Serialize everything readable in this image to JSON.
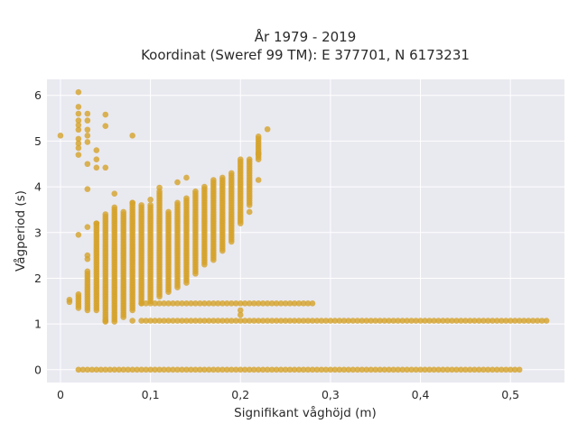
{
  "chart_data": {
    "type": "scatter",
    "title_line1": "År 1979 - 2019",
    "title_line2": "Koordinat (Sweref 99 TM): E 377701, N 6173231",
    "xlabel": "Signifikant våghöjd (m)",
    "ylabel": "Vågperiod (s)",
    "xlim": [
      -0.015,
      0.56
    ],
    "ylim": [
      -0.28,
      6.35
    ],
    "x_ticks": [
      0,
      0.1,
      0.2,
      0.3,
      0.4,
      0.5
    ],
    "x_tick_labels": [
      "0",
      "0,1",
      "0,2",
      "0,3",
      "0,4",
      "0,5"
    ],
    "y_ticks": [
      0,
      1,
      2,
      3,
      4,
      5,
      6
    ],
    "y_tick_labels": [
      "0",
      "1",
      "2",
      "3",
      "4",
      "5",
      "6"
    ],
    "grid": true,
    "legend": "none",
    "colors": {
      "marker": "#d4a32a",
      "plot_bg": "#e9e9f0",
      "grid": "#ffffff",
      "text": "#2a2a2a"
    },
    "bands": [
      {
        "x_range": [
          0.02,
          0.51
        ],
        "x_step": 0.005,
        "y": 0.0
      },
      {
        "x_range": [
          0.09,
          0.54
        ],
        "x_step": 0.005,
        "y": 1.07
      },
      {
        "x_range": [
          0.09,
          0.28
        ],
        "x_step": 0.005,
        "y": 1.45
      }
    ],
    "columns": [
      {
        "x": 0.01,
        "y_min": 1.48,
        "y_max": 1.56
      },
      {
        "x": 0.02,
        "y_min": 1.35,
        "y_max": 1.65
      },
      {
        "x": 0.03,
        "y_min": 1.3,
        "y_max": 2.15
      },
      {
        "x": 0.04,
        "y_min": 1.3,
        "y_max": 3.2
      },
      {
        "x": 0.05,
        "y_min": 1.05,
        "y_max": 3.4
      },
      {
        "x": 0.06,
        "y_min": 1.05,
        "y_max": 3.55
      },
      {
        "x": 0.07,
        "y_min": 1.15,
        "y_max": 3.45
      },
      {
        "x": 0.08,
        "y_min": 1.3,
        "y_max": 3.65
      },
      {
        "x": 0.09,
        "y_min": 1.45,
        "y_max": 3.6
      },
      {
        "x": 0.1,
        "y_min": 1.5,
        "y_max": 3.6
      },
      {
        "x": 0.11,
        "y_min": 1.6,
        "y_max": 3.9
      },
      {
        "x": 0.12,
        "y_min": 1.7,
        "y_max": 3.45
      },
      {
        "x": 0.13,
        "y_min": 1.8,
        "y_max": 3.65
      },
      {
        "x": 0.14,
        "y_min": 1.9,
        "y_max": 3.75
      },
      {
        "x": 0.15,
        "y_min": 2.1,
        "y_max": 3.9
      },
      {
        "x": 0.16,
        "y_min": 2.3,
        "y_max": 4.0
      },
      {
        "x": 0.17,
        "y_min": 2.4,
        "y_max": 4.15
      },
      {
        "x": 0.18,
        "y_min": 2.6,
        "y_max": 4.2
      },
      {
        "x": 0.19,
        "y_min": 2.8,
        "y_max": 4.3
      },
      {
        "x": 0.2,
        "y_min": 3.2,
        "y_max": 4.6
      },
      {
        "x": 0.21,
        "y_min": 3.6,
        "y_max": 4.6
      },
      {
        "x": 0.22,
        "y_min": 4.6,
        "y_max": 5.1
      }
    ],
    "outliers": [
      [
        0.0,
        5.12
      ],
      [
        0.02,
        6.07
      ],
      [
        0.02,
        5.75
      ],
      [
        0.02,
        5.6
      ],
      [
        0.02,
        5.45
      ],
      [
        0.02,
        5.35
      ],
      [
        0.02,
        5.25
      ],
      [
        0.02,
        5.05
      ],
      [
        0.02,
        4.95
      ],
      [
        0.02,
        4.85
      ],
      [
        0.02,
        4.7
      ],
      [
        0.02,
        2.95
      ],
      [
        0.03,
        5.6
      ],
      [
        0.03,
        5.45
      ],
      [
        0.03,
        5.25
      ],
      [
        0.03,
        5.12
      ],
      [
        0.03,
        4.98
      ],
      [
        0.03,
        4.5
      ],
      [
        0.03,
        3.95
      ],
      [
        0.03,
        3.12
      ],
      [
        0.03,
        2.5
      ],
      [
        0.03,
        2.42
      ],
      [
        0.04,
        4.8
      ],
      [
        0.04,
        4.6
      ],
      [
        0.04,
        4.42
      ],
      [
        0.04,
        3.2
      ],
      [
        0.05,
        5.58
      ],
      [
        0.05,
        5.33
      ],
      [
        0.05,
        4.42
      ],
      [
        0.06,
        3.85
      ],
      [
        0.08,
        5.12
      ],
      [
        0.08,
        3.65
      ],
      [
        0.05,
        1.07
      ],
      [
        0.08,
        1.07
      ],
      [
        0.1,
        3.72
      ],
      [
        0.11,
        3.98
      ],
      [
        0.13,
        4.1
      ],
      [
        0.14,
        4.2
      ],
      [
        0.2,
        1.3
      ],
      [
        0.2,
        1.2
      ],
      [
        0.21,
        3.45
      ],
      [
        0.22,
        4.15
      ],
      [
        0.22,
        4.72
      ],
      [
        0.23,
        5.26
      ]
    ]
  }
}
